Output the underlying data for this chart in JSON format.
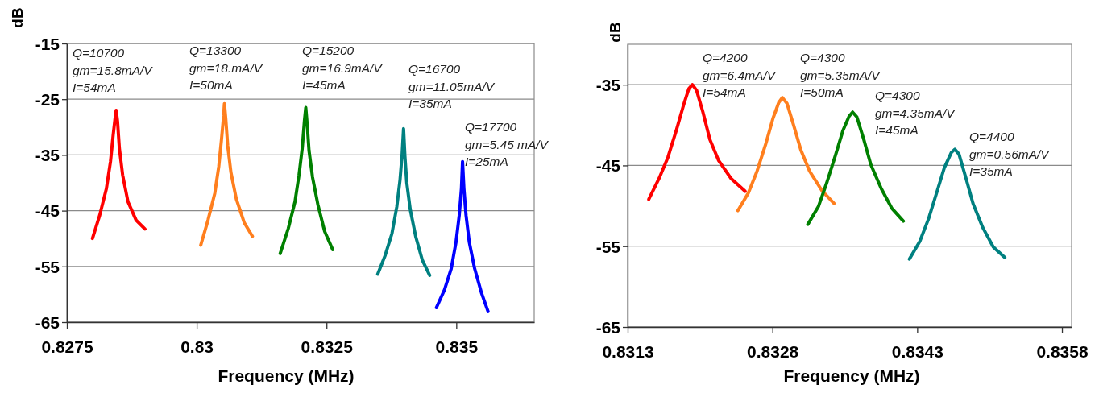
{
  "chart_data": [
    {
      "type": "line",
      "xlabel": "Frequency  (MHz)",
      "ylabel": "dB",
      "xlim": [
        0.8275,
        0.8365
      ],
      "xticks": [
        0.8275,
        0.83,
        0.8325,
        0.835
      ],
      "ylim": [
        -65,
        -15
      ],
      "yticks": [
        -65,
        -55,
        -45,
        -35,
        -25,
        -15
      ],
      "grid": "y",
      "series": [
        {
          "color": "#ff0000",
          "x": [
            0.827993,
            0.828133,
            0.828262,
            0.82834,
            0.828392,
            0.828434,
            0.828449,
            0.828475,
            0.828511,
            0.828574,
            0.828677,
            0.828833,
            0.829004
          ],
          "values": [
            -50,
            -45.8,
            -41,
            -36.2,
            -31.4,
            -28,
            -27,
            -28.9,
            -33.8,
            -38.6,
            -43.4,
            -46.7,
            -48.3
          ]
        },
        {
          "color": "#ff7f1e",
          "x": [
            0.830078,
            0.830218,
            0.830348,
            0.830425,
            0.830477,
            0.830519,
            0.830534,
            0.83056,
            0.830597,
            0.830659,
            0.830763,
            0.830918,
            0.831074
          ],
          "values": [
            -51.2,
            -46.7,
            -41.9,
            -37.1,
            -32.3,
            -28,
            -25.8,
            -28.5,
            -33.3,
            -38.1,
            -42.9,
            -47.2,
            -49.6
          ]
        },
        {
          "color": "#008000",
          "x": [
            0.831608,
            0.831764,
            0.831893,
            0.831971,
            0.832033,
            0.832075,
            0.832101,
            0.832127,
            0.832163,
            0.832231,
            0.832334,
            0.832464,
            0.83262
          ],
          "values": [
            -52.7,
            -48.2,
            -43.4,
            -38.6,
            -33.8,
            -28.9,
            -26.5,
            -29.4,
            -34.2,
            -39,
            -43.9,
            -48.7,
            -52
          ]
        },
        {
          "color": "#008080",
          "x": [
            0.833486,
            0.833631,
            0.833761,
            0.833854,
            0.833916,
            0.833958,
            0.833984,
            0.83401,
            0.834046,
            0.834113,
            0.834217,
            0.834347,
            0.834487
          ],
          "values": [
            -56.4,
            -53,
            -49.1,
            -44.3,
            -39.5,
            -34.7,
            -30.3,
            -35.2,
            -40,
            -44.8,
            -49.6,
            -53.9,
            -56.6
          ]
        },
        {
          "color": "#0000ff",
          "x": [
            0.834617,
            0.834772,
            0.834902,
            0.834995,
            0.835057,
            0.835099,
            0.83512,
            0.835146,
            0.835187,
            0.835249,
            0.835353,
            0.835483,
            0.835612
          ],
          "values": [
            -62.4,
            -59.2,
            -55.4,
            -50.6,
            -45.8,
            -41,
            -36.2,
            -41,
            -45.8,
            -50.6,
            -55.4,
            -59.7,
            -63.1
          ]
        }
      ],
      "annotations": [
        "Q=10700\ngm=15.8mA/V\nI=54mA",
        "Q=13300\ngm=18.mA/V\nI=50mA",
        "Q=15200\ngm=16.9mA/V\nI=45mA",
        "Q=16700\ngm=11.05mA/V\nI=35mA",
        "Q=17700\ngm=5.45 mA/V\nI=25mA"
      ]
    },
    {
      "type": "line",
      "xlabel": "Frequency (MHz)",
      "ylabel": "dB",
      "xlim": [
        0.8313,
        0.8359
      ],
      "xticks": [
        0.8313,
        0.8328,
        0.8343,
        0.8358
      ],
      "ylim": [
        -65,
        -30
      ],
      "yticks": [
        -65,
        -55,
        -45,
        -35
      ],
      "grid": "y",
      "series": [
        {
          "color": "#ff0000",
          "x": [
            0.831518,
            0.831626,
            0.831717,
            0.831808,
            0.83188,
            0.831934,
            0.831971,
            0.832014,
            0.83208,
            0.832152,
            0.832243,
            0.83237,
            0.832518
          ],
          "values": [
            -49.2,
            -46.6,
            -44,
            -40.5,
            -37.5,
            -35.5,
            -35,
            -35.7,
            -38.4,
            -41.8,
            -44.4,
            -46.6,
            -48.2
          ]
        },
        {
          "color": "#ff7f1e",
          "x": [
            0.832442,
            0.832551,
            0.832641,
            0.832732,
            0.832805,
            0.832866,
            0.832903,
            0.83295,
            0.833022,
            0.833095,
            0.833185,
            0.833312,
            0.833439
          ],
          "values": [
            -50.6,
            -48.4,
            -45.7,
            -42.3,
            -39.2,
            -37.2,
            -36.6,
            -37.3,
            -40.1,
            -43.1,
            -45.7,
            -48.1,
            -49.7
          ]
        },
        {
          "color": "#008000",
          "x": [
            0.833167,
            0.833276,
            0.833367,
            0.833457,
            0.83353,
            0.833595,
            0.833631,
            0.833675,
            0.833747,
            0.83382,
            0.833929,
            0.834037,
            0.834157
          ],
          "values": [
            -52.3,
            -50.1,
            -47,
            -43.6,
            -40.7,
            -38.9,
            -38.4,
            -39,
            -41.8,
            -44.9,
            -47.9,
            -50.3,
            -51.9
          ]
        },
        {
          "color": "#008080",
          "x": [
            0.834219,
            0.834327,
            0.834418,
            0.834509,
            0.834581,
            0.834654,
            0.83469,
            0.834733,
            0.834806,
            0.834878,
            0.83498,
            0.835089,
            0.835208
          ],
          "values": [
            -56.6,
            -54.4,
            -51.6,
            -48.1,
            -45.3,
            -43.4,
            -43,
            -43.6,
            -46.6,
            -49.7,
            -52.7,
            -55.1,
            -56.4
          ]
        }
      ],
      "annotations": [
        "Q=4200\ngm=6.4mA/V\nI=54mA",
        "Q=4300\ngm=5.35mA/V\nI=50mA",
        "Q=4300\ngm=4.35mA/V\nI=45mA",
        "Q=4400\ngm=0.56mA/V\nI=35mA"
      ]
    }
  ]
}
